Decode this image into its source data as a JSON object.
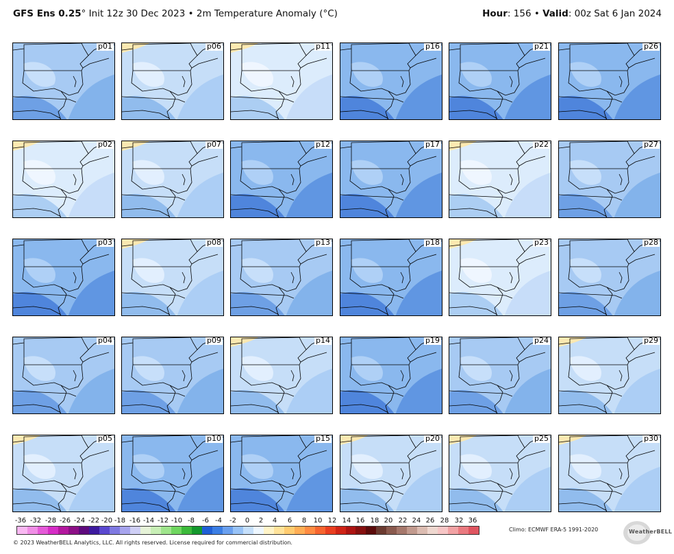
{
  "header": {
    "model": "GFS Ens 0.25",
    "deg": "°",
    "init": " Init 12z 30 Dec 2023 • 2m Temperature Anomaly (",
    "unit": "°C)",
    "hour_label": "Hour",
    "hour_value": ": 156 • ",
    "valid_label": "Valid",
    "valid_value": ": 00z Sat 6 Jan 2024"
  },
  "panels": [
    {
      "label": "p01",
      "tone": "med"
    },
    {
      "label": "p06",
      "tone": "pale"
    },
    {
      "label": "p11",
      "tone": "white"
    },
    {
      "label": "p16",
      "tone": "dark"
    },
    {
      "label": "p21",
      "tone": "dark"
    },
    {
      "label": "p26",
      "tone": "dark"
    },
    {
      "label": "p02",
      "tone": "white"
    },
    {
      "label": "p07",
      "tone": "pale"
    },
    {
      "label": "p12",
      "tone": "dark"
    },
    {
      "label": "p17",
      "tone": "dark"
    },
    {
      "label": "p22",
      "tone": "white"
    },
    {
      "label": "p27",
      "tone": "med"
    },
    {
      "label": "p03",
      "tone": "dark"
    },
    {
      "label": "p08",
      "tone": "pale"
    },
    {
      "label": "p13",
      "tone": "med"
    },
    {
      "label": "p18",
      "tone": "dark"
    },
    {
      "label": "p23",
      "tone": "white"
    },
    {
      "label": "p28",
      "tone": "med"
    },
    {
      "label": "p04",
      "tone": "med"
    },
    {
      "label": "p09",
      "tone": "med"
    },
    {
      "label": "p14",
      "tone": "pale"
    },
    {
      "label": "p19",
      "tone": "dark"
    },
    {
      "label": "p24",
      "tone": "med"
    },
    {
      "label": "p29",
      "tone": "pale"
    },
    {
      "label": "p05",
      "tone": "pale"
    },
    {
      "label": "p10",
      "tone": "dark"
    },
    {
      "label": "p15",
      "tone": "dark"
    },
    {
      "label": "p20",
      "tone": "pale"
    },
    {
      "label": "p25",
      "tone": "pale"
    },
    {
      "label": "p30",
      "tone": "pale"
    }
  ],
  "colorbar": {
    "ticks": [
      "-36",
      "-32",
      "-28",
      "-26",
      "-24",
      "-22",
      "-20",
      "-18",
      "-16",
      "-14",
      "-12",
      "-10",
      "-8",
      "-6",
      "-4",
      "-2",
      "0",
      "2",
      "4",
      "6",
      "8",
      "10",
      "12",
      "14",
      "16",
      "18",
      "20",
      "22",
      "24",
      "26",
      "28",
      "32",
      "36"
    ],
    "colors": [
      "#f9b8f2",
      "#f08ee6",
      "#e55ad8",
      "#d62dc6",
      "#b3179e",
      "#8c0f86",
      "#5e0a7d",
      "#3d1a9e",
      "#5a48d0",
      "#7f79e2",
      "#a7a4ee",
      "#cfcff6",
      "#e6f3d8",
      "#c8efb6",
      "#9fe58c",
      "#6fd65f",
      "#3cba3a",
      "#14982d",
      "#1f5fd6",
      "#3b7ee4",
      "#6aa0ef",
      "#98c3f7",
      "#c6e0fb",
      "#eef7ff",
      "#fff4c8",
      "#ffe39a",
      "#ffcc70",
      "#ffae55",
      "#ff8c42",
      "#f7652f",
      "#ea3f20",
      "#d02416",
      "#ad1412",
      "#86100f",
      "#5b0b0b",
      "#6b3a30",
      "#8a5a4e",
      "#a6786c",
      "#c29a8e",
      "#dcbcb1",
      "#efd8d0",
      "#f7c6c6",
      "#f2a2a4",
      "#ea7a80",
      "#e05560"
    ]
  },
  "climo": "Climo: ECMWF ERA-5 1991-2020",
  "copyright": "© 2023 WeatherBELL Analytics, LLC. All rights reserved. License required for commercial distribution.",
  "logo_text": "WeatherBELL"
}
